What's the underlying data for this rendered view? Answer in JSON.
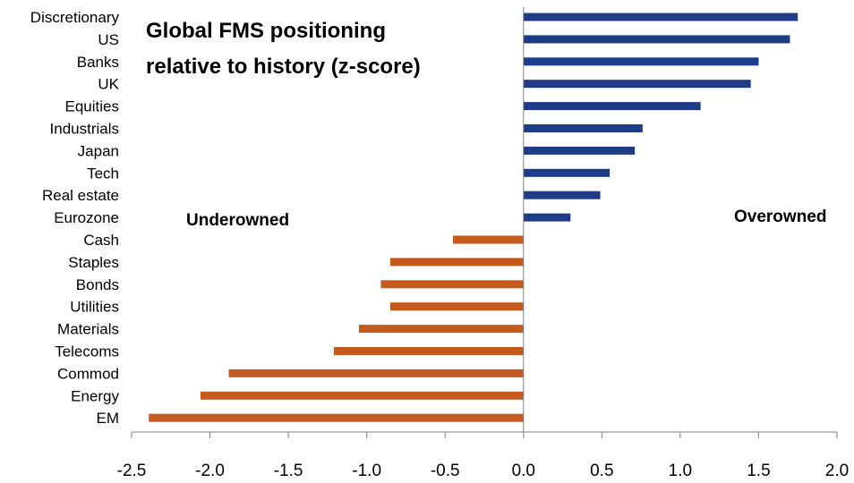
{
  "chart_data": {
    "type": "bar",
    "orientation": "horizontal",
    "title_lines": [
      "Global FMS positioning",
      "relative to history (z-score)"
    ],
    "categories": [
      "Discretionary",
      "US",
      "Banks",
      "UK",
      "Equities",
      "Industrials",
      "Japan",
      "Tech",
      "Real estate",
      "Eurozone",
      "Cash",
      "Staples",
      "Bonds",
      "Utilities",
      "Materials",
      "Telecoms",
      "Commod",
      "Energy",
      "EM"
    ],
    "values": [
      1.75,
      1.7,
      1.5,
      1.45,
      1.13,
      0.76,
      0.71,
      0.55,
      0.49,
      0.3,
      -0.45,
      -0.85,
      -0.91,
      -0.85,
      -1.05,
      -1.21,
      -1.88,
      -2.06,
      -2.39
    ],
    "xlim": [
      -2.5,
      2.0
    ],
    "xticks": [
      -2.5,
      -2.0,
      -1.5,
      -1.0,
      -0.5,
      0.0,
      0.5,
      1.0,
      1.5,
      2.0
    ],
    "xtick_labels": [
      "-2.5",
      "-2.0",
      "-1.5",
      "-1.0",
      "-0.5",
      "0.0",
      "0.5",
      "1.0",
      "1.5",
      "2.0"
    ],
    "annotations": {
      "underowned": "Underowned",
      "overowned": "Overowned"
    },
    "colors": {
      "positive": "#1f3c88",
      "negative": "#c55a1e",
      "axis": "#808080"
    },
    "grid": false,
    "legend": "none"
  }
}
